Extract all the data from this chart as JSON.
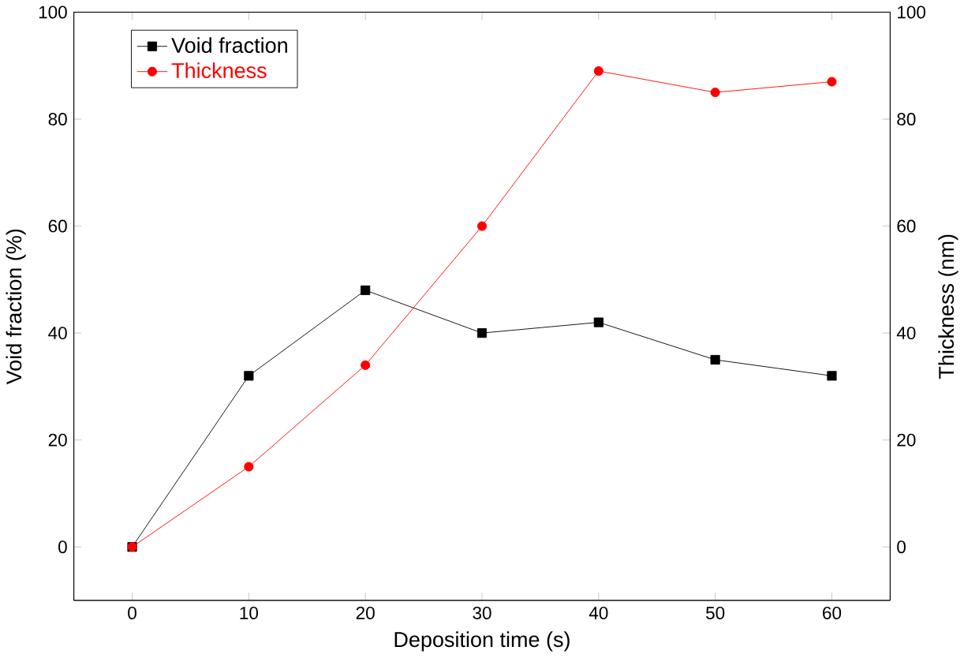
{
  "chart_data": {
    "type": "line",
    "xlabel": "Deposition time (s)",
    "ylabel": "Void fraction (%)",
    "y2label": "Thickness (nm)",
    "x": [
      0,
      10,
      20,
      30,
      40,
      50,
      60
    ],
    "series": [
      {
        "name": "Void fraction",
        "color": "#000000",
        "marker": "square",
        "values": [
          0,
          32,
          48,
          40,
          42,
          35,
          32
        ]
      },
      {
        "name": "Thickness",
        "color": "#ff0000",
        "marker": "circle",
        "axis": "y2",
        "values": [
          0,
          15,
          34,
          60,
          89,
          85,
          87
        ]
      }
    ],
    "xlim": [
      -5,
      65
    ],
    "xticks": [
      0,
      10,
      20,
      30,
      40,
      50,
      60
    ],
    "ylim": [
      -10,
      100
    ],
    "yticks": [
      0,
      20,
      40,
      60,
      80,
      100
    ],
    "y2lim": [
      -10,
      100
    ],
    "y2ticks": [
      0,
      20,
      40,
      60,
      80,
      100
    ],
    "legend": "top left",
    "line_style": "solid",
    "grid": false
  }
}
